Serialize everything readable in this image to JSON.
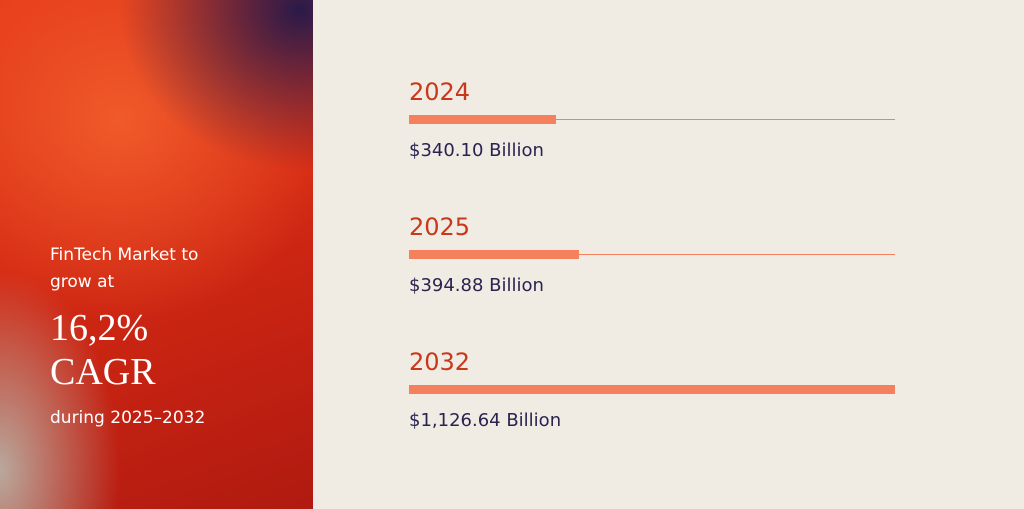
{
  "chart_data": {
    "type": "bar",
    "orientation": "horizontal",
    "categories": [
      "2024",
      "2025",
      "2032"
    ],
    "values": [
      340.1,
      394.88,
      1126.64
    ],
    "value_labels": [
      "$340.10 Billion",
      "$394.88 Billion",
      "$1,126.64 Billion"
    ],
    "xlim": [
      0,
      1126.64
    ],
    "color": "#f4805e"
  },
  "panel": {
    "intro": "FinTech Market to grow at",
    "cagr": "16,2%",
    "cagr_word": "CAGR",
    "period": "during 2025–2032"
  }
}
